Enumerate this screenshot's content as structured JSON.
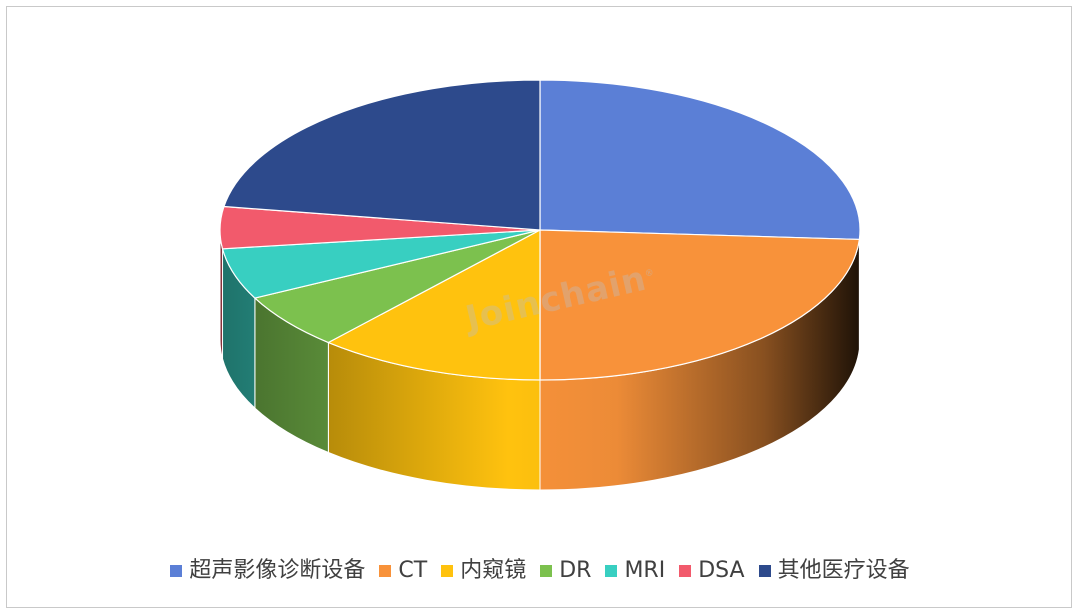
{
  "chart_data": {
    "type": "pie",
    "style": "3d",
    "legend_position": "bottom",
    "categories": [
      "超声影像诊断设备",
      "CT",
      "内窥镜",
      "DR",
      "MRI",
      "DSA",
      "其他医疗设备"
    ],
    "values": [
      26.0,
      24.0,
      11.5,
      6.0,
      5.5,
      4.5,
      22.5
    ],
    "unit": "%",
    "colors": [
      "#5b7fd6",
      "#f8923a",
      "#ffc20e",
      "#7cc14e",
      "#38cfc1",
      "#f25a6c",
      "#2d4a8c"
    ]
  },
  "watermark": "Joinchain"
}
